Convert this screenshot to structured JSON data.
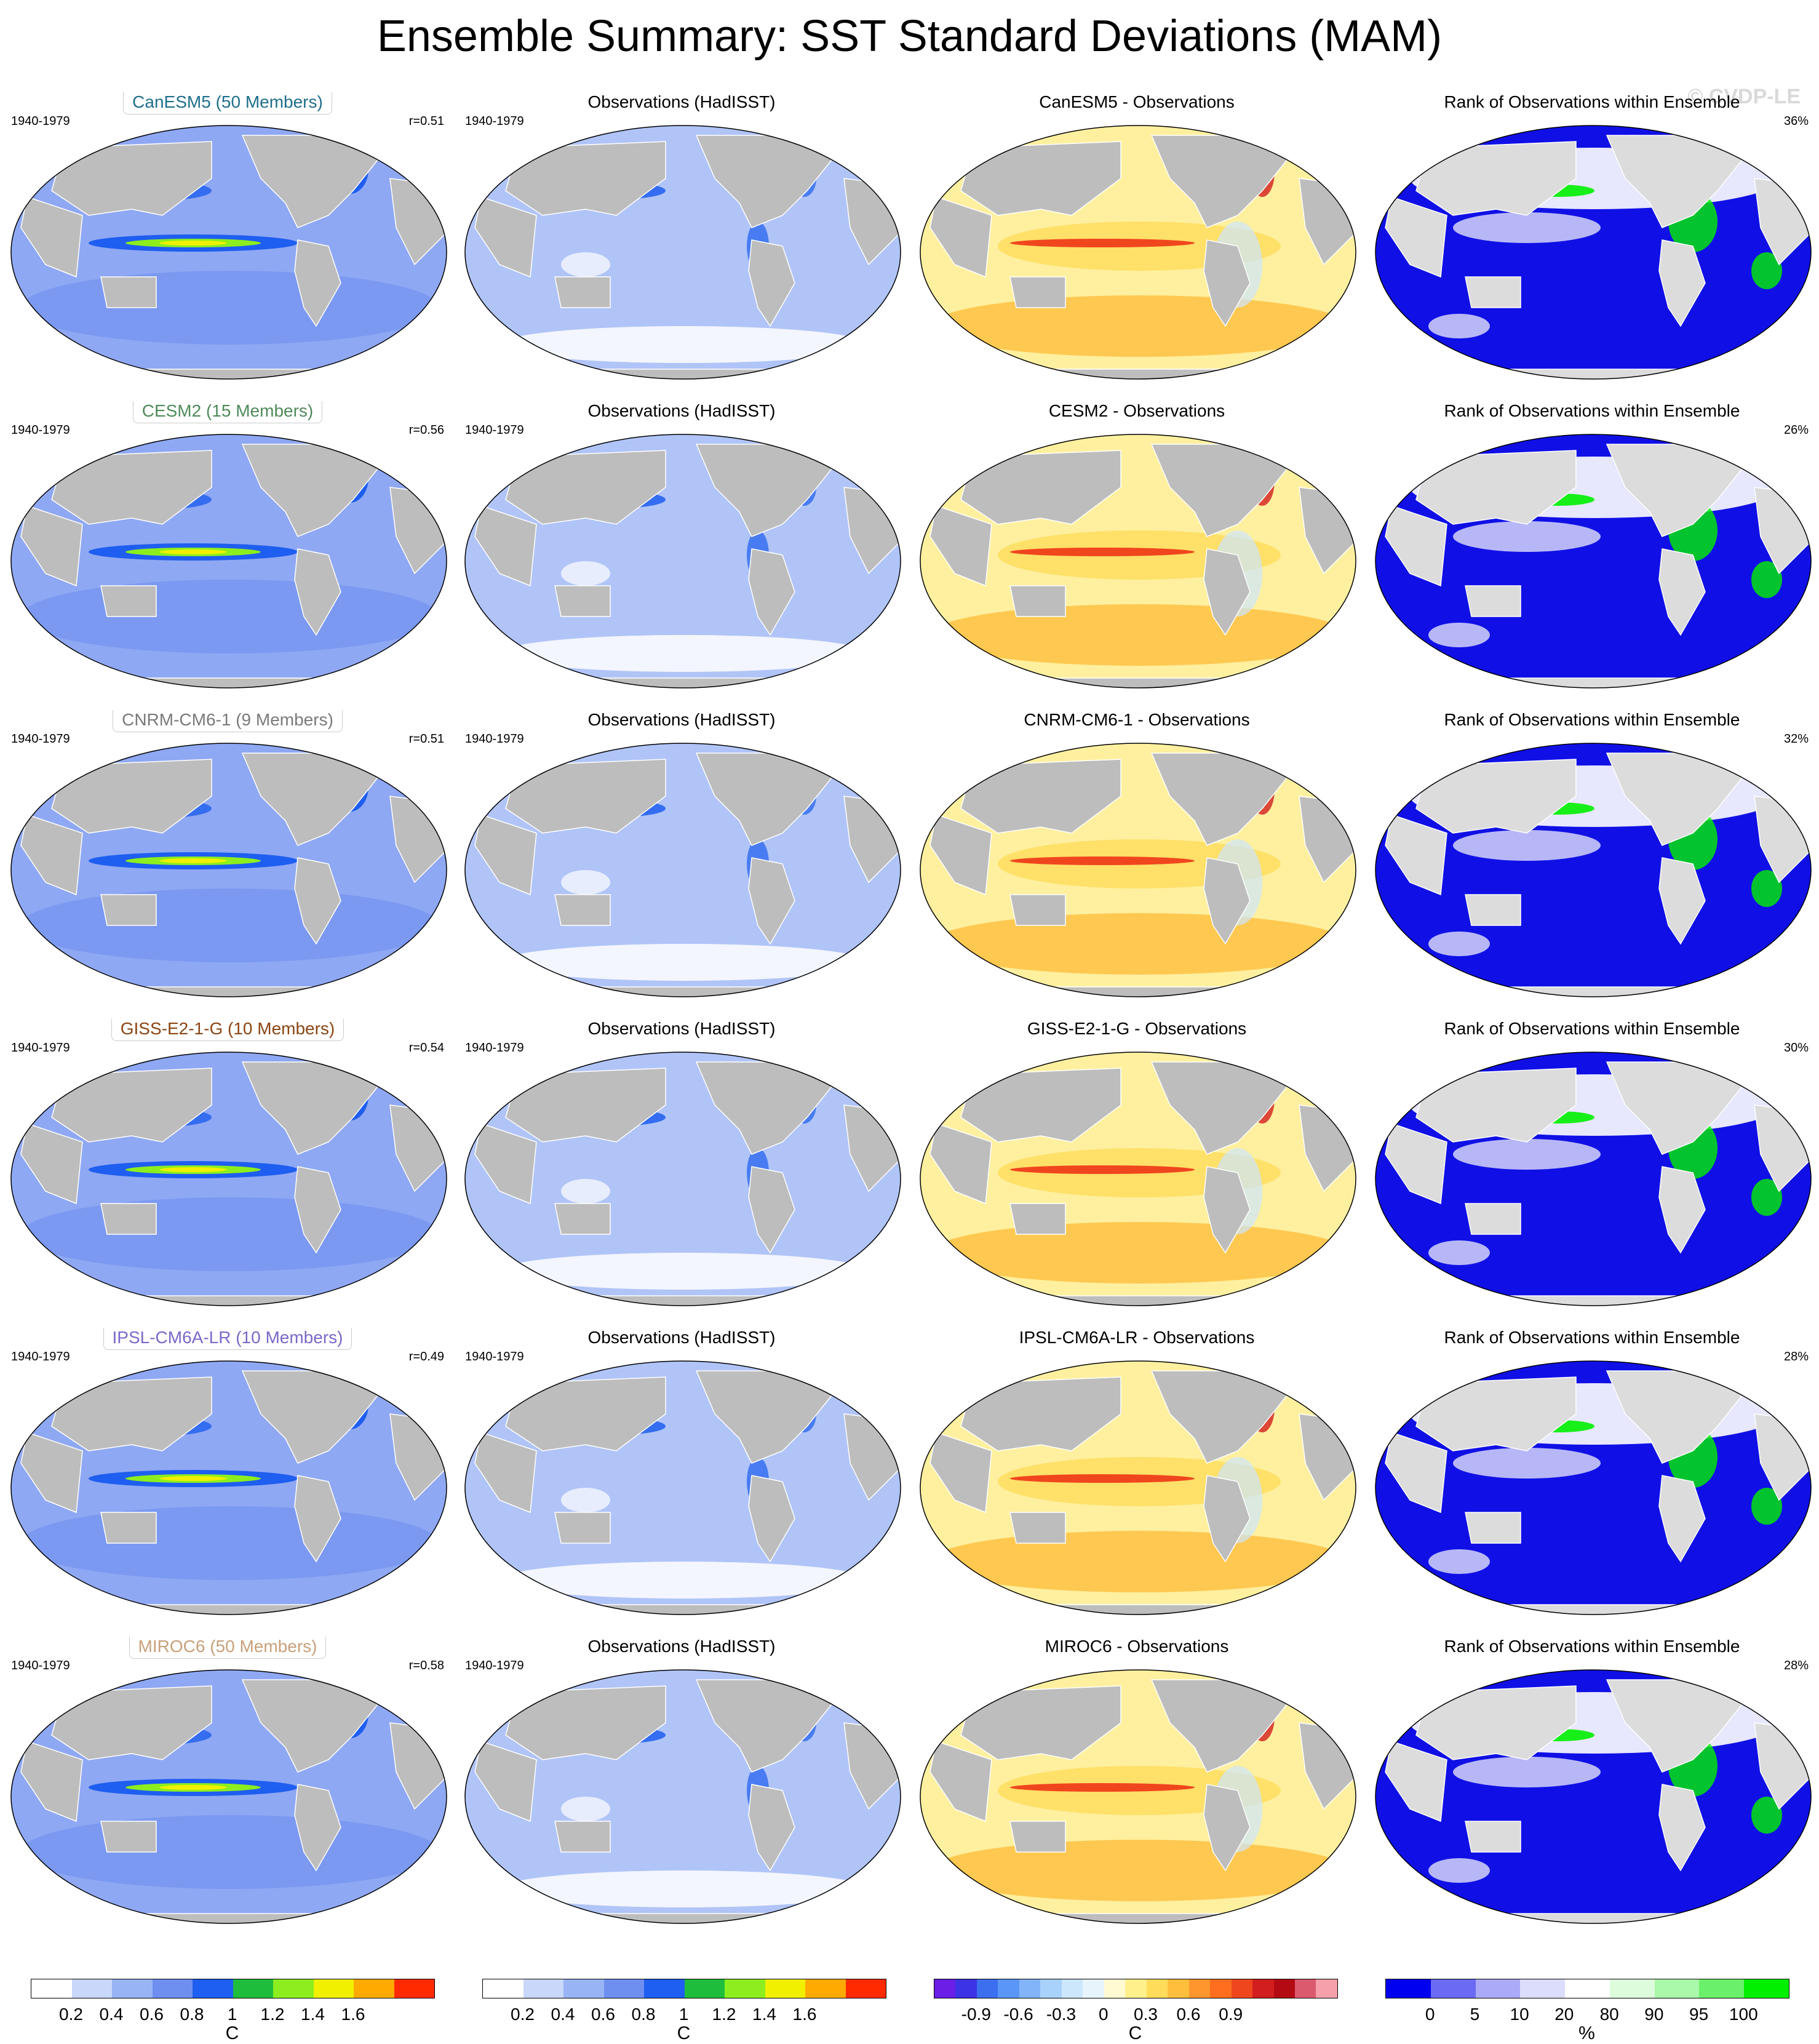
{
  "title": "Ensemble Summary: SST Standard Deviations (MAM)",
  "watermark": "© CVDP-LE",
  "period": "1940-1979",
  "obs_title": "Observations (HadISST)",
  "rank_title": "Rank of Observations within Ensemble",
  "rows": [
    {
      "model": "CanESM5 (50 Members)",
      "model_color": "#1f6f8b",
      "r": "r=0.51",
      "diff": "CanESM5 - Observations",
      "rank_pct": "36%"
    },
    {
      "model": "CESM2 (15 Members)",
      "model_color": "#4f8a5b",
      "r": "r=0.56",
      "diff": "CESM2 - Observations",
      "rank_pct": "26%"
    },
    {
      "model": "CNRM-CM6-1 (9 Members)",
      "model_color": "#7a7a7a",
      "r": "r=0.51",
      "diff": "CNRM-CM6-1 - Observations",
      "rank_pct": "32%"
    },
    {
      "model": "GISS-E2-1-G (10 Members)",
      "model_color": "#8b4513",
      "r": "r=0.54",
      "diff": "GISS-E2-1-G - Observations",
      "rank_pct": "30%"
    },
    {
      "model": "IPSL-CM6A-LR (10 Members)",
      "model_color": "#7b68c8",
      "r": "r=0.49",
      "diff": "IPSL-CM6A-LR - Observations",
      "rank_pct": "28%"
    },
    {
      "model": "MIROC6 (50 Members)",
      "model_color": "#c8a07a",
      "r": "r=0.58",
      "diff": "MIROC6 - Observations",
      "rank_pct": "28%"
    }
  ],
  "colorbars": [
    {
      "unit": "C",
      "ticks": [
        "0.2",
        "0.4",
        "0.6",
        "0.8",
        "1",
        "1.2",
        "1.4",
        "1.6"
      ],
      "colors": [
        "#ffffff",
        "#c8d7fa",
        "#98b4f5",
        "#6e8ff0",
        "#1e5ef0",
        "#1ebe3c",
        "#8cee1e",
        "#f0f000",
        "#ffaa00",
        "#ff2a00"
      ]
    },
    {
      "unit": "C",
      "ticks": [
        "0.2",
        "0.4",
        "0.6",
        "0.8",
        "1",
        "1.2",
        "1.4",
        "1.6"
      ],
      "colors": [
        "#ffffff",
        "#c8d7fa",
        "#98b4f5",
        "#6e8ff0",
        "#1e5ef0",
        "#1ebe3c",
        "#8cee1e",
        "#f0f000",
        "#ffaa00",
        "#ff2a00"
      ]
    },
    {
      "unit": "C",
      "ticks": [
        "-0.9",
        "-0.6",
        "-0.3",
        "0",
        "0.3",
        "0.6",
        "0.9"
      ],
      "colors": [
        "#6a1ee6",
        "#3c32e6",
        "#3c6ef0",
        "#5a96f5",
        "#82b4fa",
        "#a8d2fc",
        "#cce6fc",
        "#e8f4fc",
        "#fffad2",
        "#fff08c",
        "#ffdc5a",
        "#ffbe3c",
        "#ff962d",
        "#ff6e1e",
        "#f0461e",
        "#d21e1e",
        "#b40a14",
        "#dc5a6e",
        "#f5a0aa"
      ]
    },
    {
      "unit": "%",
      "ticks": [
        "0",
        "5",
        "10",
        "20",
        "80",
        "90",
        "95",
        "100"
      ],
      "colors": [
        "#0000f0",
        "#6a6af5",
        "#aaaaf8",
        "#dcdcfc",
        "#ffffff",
        "#dcfcdc",
        "#aaf8aa",
        "#6af06a",
        "#00f000"
      ]
    }
  ]
}
